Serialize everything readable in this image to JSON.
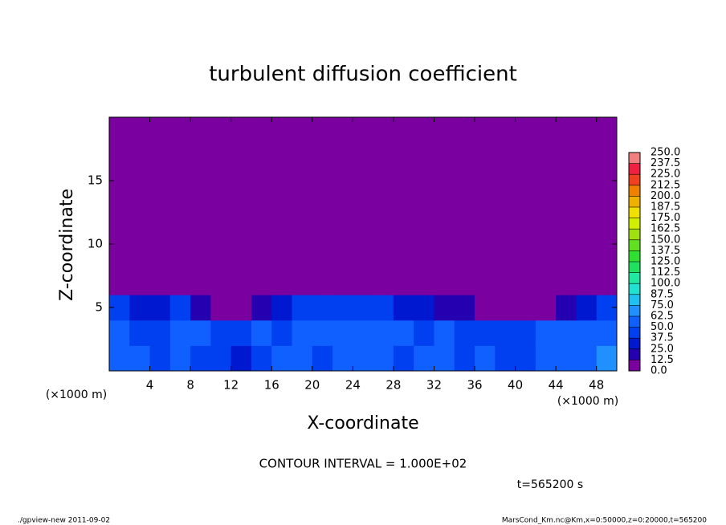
{
  "chart_data": {
    "type": "heatmap",
    "title": "turbulent diffusion coefficient",
    "x_label": "X-coordinate",
    "y_label": "Z-coordinate",
    "x_unit_left": "(×1000 m)",
    "x_unit_right": "(×1000 m)",
    "contour_note": "CONTOUR INTERVAL = 1.000E+02",
    "time_note": "t=565200 s",
    "footer_left": "./gpview-new  2011-09-02",
    "footer_right": "MarsCond_Km.nc@Km,x=0:50000,z=0:20000,t=565200",
    "xlim": [
      0,
      50
    ],
    "ylim": [
      0,
      20
    ],
    "xticks": [
      4,
      8,
      12,
      16,
      20,
      24,
      28,
      32,
      36,
      40,
      44,
      48
    ],
    "yticks": [
      5,
      10,
      15
    ],
    "z": [
      [
        55,
        50,
        45,
        60,
        45,
        40,
        35,
        45,
        50,
        55,
        45,
        50,
        55,
        60,
        45,
        50,
        55,
        45,
        50,
        40,
        45,
        50,
        55,
        60,
        65
      ],
      [
        50,
        45,
        40,
        55,
        50,
        40,
        45,
        50,
        45,
        55,
        50,
        60,
        50,
        55,
        60,
        45,
        50,
        45,
        40,
        45,
        40,
        50,
        55,
        50,
        60
      ],
      [
        45,
        30,
        25,
        40,
        20,
        0,
        0,
        20,
        25,
        40,
        45,
        40,
        40,
        45,
        25,
        30,
        20,
        15,
        0,
        0,
        10,
        0,
        20,
        30,
        40
      ],
      [
        0,
        0,
        0,
        0,
        0,
        0,
        0,
        0,
        0,
        0,
        0,
        0,
        0,
        0,
        0,
        0,
        0,
        0,
        0,
        0,
        0,
        0,
        0,
        0,
        0
      ],
      [
        0,
        0,
        0,
        0,
        0,
        0,
        0,
        0,
        0,
        0,
        0,
        0,
        0,
        0,
        0,
        0,
        0,
        0,
        0,
        0,
        0,
        0,
        0,
        0,
        0
      ],
      [
        0,
        0,
        0,
        0,
        0,
        0,
        0,
        0,
        0,
        0,
        0,
        0,
        0,
        0,
        0,
        0,
        0,
        0,
        0,
        0,
        0,
        0,
        0,
        0,
        0
      ],
      [
        0,
        0,
        0,
        0,
        0,
        0,
        0,
        0,
        0,
        0,
        0,
        0,
        0,
        0,
        0,
        0,
        0,
        0,
        0,
        0,
        0,
        0,
        0,
        0,
        0
      ],
      [
        0,
        0,
        0,
        0,
        0,
        0,
        0,
        0,
        0,
        0,
        0,
        0,
        0,
        0,
        0,
        0,
        0,
        0,
        0,
        0,
        0,
        0,
        0,
        0,
        0
      ],
      [
        0,
        0,
        0,
        0,
        0,
        0,
        0,
        0,
        0,
        0,
        0,
        0,
        0,
        0,
        0,
        0,
        0,
        0,
        0,
        0,
        0,
        0,
        0,
        0,
        0
      ],
      [
        0,
        0,
        0,
        0,
        0,
        0,
        0,
        0,
        0,
        0,
        0,
        0,
        0,
        0,
        0,
        0,
        0,
        0,
        0,
        0,
        0,
        0,
        0,
        0,
        0
      ]
    ],
    "levels": [
      {
        "value": 0,
        "label": "0.0"
      },
      {
        "value": 12.5,
        "label": "12.5"
      },
      {
        "value": 25,
        "label": "25.0"
      },
      {
        "value": 37.5,
        "label": "37.5"
      },
      {
        "value": 50,
        "label": "50.0"
      },
      {
        "value": 62.5,
        "label": "62.5"
      },
      {
        "value": 75,
        "label": "75.0"
      },
      {
        "value": 87.5,
        "label": "87.5"
      },
      {
        "value": 100,
        "label": "100.0"
      },
      {
        "value": 112.5,
        "label": "112.5"
      },
      {
        "value": 125,
        "label": "125.0"
      },
      {
        "value": 137.5,
        "label": "137.5"
      },
      {
        "value": 150,
        "label": "150.0"
      },
      {
        "value": 162.5,
        "label": "162.5"
      },
      {
        "value": 175,
        "label": "175.0"
      },
      {
        "value": 187.5,
        "label": "187.5"
      },
      {
        "value": 200,
        "label": "200.0"
      },
      {
        "value": 212.5,
        "label": "212.5"
      },
      {
        "value": 225,
        "label": "225.0"
      },
      {
        "value": 237.5,
        "label": "237.5"
      },
      {
        "value": 250,
        "label": "250.0"
      }
    ],
    "colors": [
      "#7a00a0",
      "#2400b0",
      "#0018d0",
      "#0040f0",
      "#1060ff",
      "#2090ff",
      "#20c0f0",
      "#20e0d0",
      "#20e8a0",
      "#20e060",
      "#30e030",
      "#60e020",
      "#a0e010",
      "#d0f000",
      "#f0e000",
      "#f0b000",
      "#f08000",
      "#f04020",
      "#f02040",
      "#f08080"
    ]
  }
}
